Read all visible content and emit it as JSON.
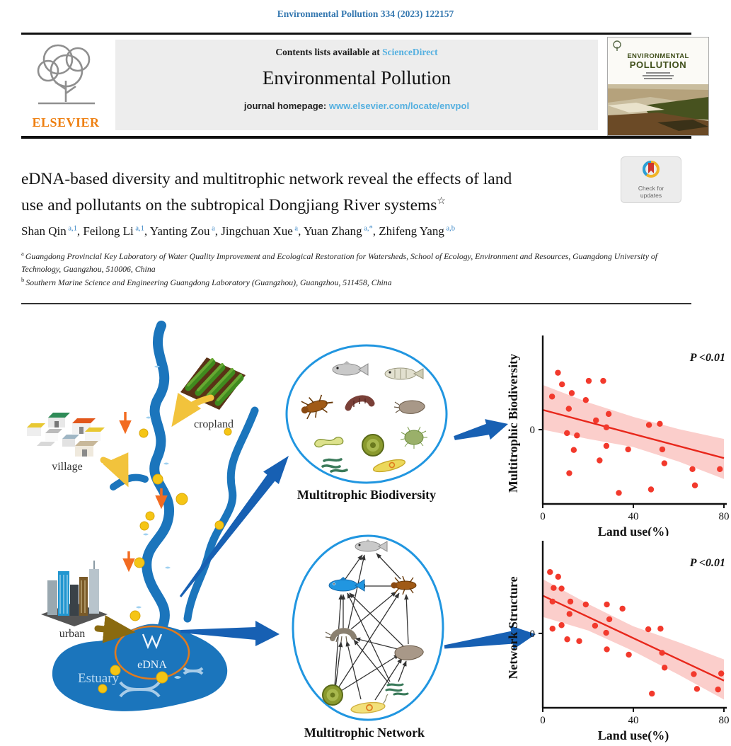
{
  "header": {
    "citation": "Environmental Pollution 334 (2023) 122157",
    "contents_prefix": "Contents lists available at",
    "sciencedirect": "ScienceDirect",
    "journal_name": "Environmental Pollution",
    "homepage_label": "journal homepage:",
    "homepage_url": "www.elsevier.com/locate/envpol",
    "publisher": "ELSEVIER",
    "cover": {
      "line1": "ENVIRONMENTAL",
      "line2": "POLLUTION"
    }
  },
  "article": {
    "title_line1": "eDNA-based diversity and multitrophic network reveal the effects of land",
    "title_line2": "use and pollutants on the subtropical Dongjiang River systems",
    "title_mark": "☆",
    "authors": [
      {
        "name": "Shan Qin",
        "sup": "a,1"
      },
      {
        "name": "Feilong Li",
        "sup": "a,1"
      },
      {
        "name": "Yanting Zou",
        "sup": "a"
      },
      {
        "name": "Jingchuan Xue",
        "sup": "a"
      },
      {
        "name": "Yuan Zhang",
        "sup": "a,*"
      },
      {
        "name": "Zhifeng Yang",
        "sup": "a,b"
      }
    ],
    "affiliations": [
      {
        "sup": "a",
        "text": "Guangdong Provincial Key Laboratory of Water Quality Improvement and Ecological Restoration for Watersheds, School of Ecology, Environment and Resources, Guangdong University of Technology, Guangzhou, 510006, China"
      },
      {
        "sup": "b",
        "text": "Southern Marine Science and Engineering Guangdong Laboratory (Guangzhou), Guangzhou, 511458, China"
      }
    ],
    "check_for": "Check for",
    "updates": "updates"
  },
  "fig": {
    "cropland": "cropland",
    "village": "village",
    "urban": "urban",
    "estuary": "Estuary",
    "edna": "eDNA",
    "biodiversity_label": "Multitrophic Biodiversity",
    "network_label": "Multitrophic Network"
  },
  "colors": {
    "river_blue": "#1b75bc",
    "arrow_blue": "#1760b3",
    "circle_blue": "#2196e0",
    "link_blue": "#55b0e0",
    "elsevier_orange": "#ee7f10",
    "point_red": "#f2392c",
    "line_red": "#e8271b",
    "band_pink": "#f9b4af"
  },
  "chart_data": [
    {
      "type": "scatter",
      "ylabel": "Multitrophic Biodiversity",
      "xlabel": "Land use(%)",
      "annotation": "P <0.01",
      "xticks": [
        0,
        40,
        80
      ],
      "yticks": [
        0
      ],
      "xlim": [
        0,
        80
      ],
      "ylim": [
        -1.28,
        1.5
      ],
      "grid": false,
      "points": [
        [
          6.7,
          0.98
        ],
        [
          8.5,
          0.78
        ],
        [
          12.8,
          0.63
        ],
        [
          4.1,
          0.57
        ],
        [
          19,
          0.51
        ],
        [
          20.3,
          0.84
        ],
        [
          26.7,
          0.84
        ],
        [
          11.5,
          0.36
        ],
        [
          23.5,
          0.16
        ],
        [
          29.1,
          0.27
        ],
        [
          28.1,
          0.04
        ],
        [
          10.7,
          -0.06
        ],
        [
          15.1,
          -0.1
        ],
        [
          13.7,
          -0.35
        ],
        [
          28.1,
          -0.28
        ],
        [
          37.7,
          -0.34
        ],
        [
          25.1,
          -0.53
        ],
        [
          11.7,
          -0.75
        ],
        [
          46.9,
          0.08
        ],
        [
          51.7,
          0.1
        ],
        [
          52.8,
          -0.34
        ],
        [
          53.7,
          -0.58
        ],
        [
          66.1,
          -0.68
        ],
        [
          78.2,
          -0.68
        ],
        [
          67.2,
          -0.96
        ],
        [
          47.8,
          -1.03
        ],
        [
          33.6,
          -1.09
        ]
      ],
      "regression": [
        [
          0,
          0.34
        ],
        [
          80,
          -0.49
        ]
      ],
      "band": {
        "x": [
          0,
          20,
          40,
          60,
          80
        ],
        "upper": [
          0.77,
          0.47,
          0.22,
          0.01,
          -0.16
        ],
        "lower": [
          0.0,
          -0.16,
          -0.3,
          -0.55,
          -0.85
        ]
      },
      "colors": {
        "point": "#f2392c",
        "line": "#e8271b",
        "band": "#f9b4af"
      }
    },
    {
      "type": "scatter",
      "ylabel": "Network Structure",
      "xlabel": "Land use(%)",
      "annotation": "P <0.01",
      "xticks": [
        0,
        40,
        80
      ],
      "yticks": [
        0
      ],
      "xlim": [
        0,
        80
      ],
      "ylim": [
        -1.26,
        1.45
      ],
      "grid": false,
      "points": [
        [
          3.2,
          1.04
        ],
        [
          6.8,
          0.96
        ],
        [
          4.8,
          0.77
        ],
        [
          8.3,
          0.76
        ],
        [
          4.3,
          0.54
        ],
        [
          12.2,
          0.54
        ],
        [
          19,
          0.49
        ],
        [
          28.3,
          0.49
        ],
        [
          35.2,
          0.42
        ],
        [
          11.8,
          0.33
        ],
        [
          29.4,
          0.24
        ],
        [
          23.1,
          0.13
        ],
        [
          8.3,
          0.14
        ],
        [
          4.3,
          0.08
        ],
        [
          28,
          0.01
        ],
        [
          10.8,
          -0.1
        ],
        [
          16.1,
          -0.13
        ],
        [
          28.3,
          -0.27
        ],
        [
          38,
          -0.36
        ],
        [
          46.6,
          0.07
        ],
        [
          52,
          0.08
        ],
        [
          52.7,
          -0.33
        ],
        [
          53.8,
          -0.58
        ],
        [
          66.7,
          -0.69
        ],
        [
          68.1,
          -0.94
        ],
        [
          77.4,
          -0.95
        ],
        [
          78.8,
          -0.68
        ],
        [
          48.2,
          -1.02
        ]
      ],
      "regression": [
        [
          0,
          0.64
        ],
        [
          80,
          -0.8
        ]
      ],
      "band": {
        "x": [
          0,
          20,
          40,
          60,
          80
        ],
        "upper": [
          0.92,
          0.5,
          0.12,
          -0.15,
          -0.44
        ],
        "lower": [
          0.28,
          0.05,
          -0.3,
          -0.7,
          -1.12
        ]
      },
      "colors": {
        "point": "#f2392c",
        "line": "#e8271b",
        "band": "#f9b4af"
      }
    }
  ]
}
